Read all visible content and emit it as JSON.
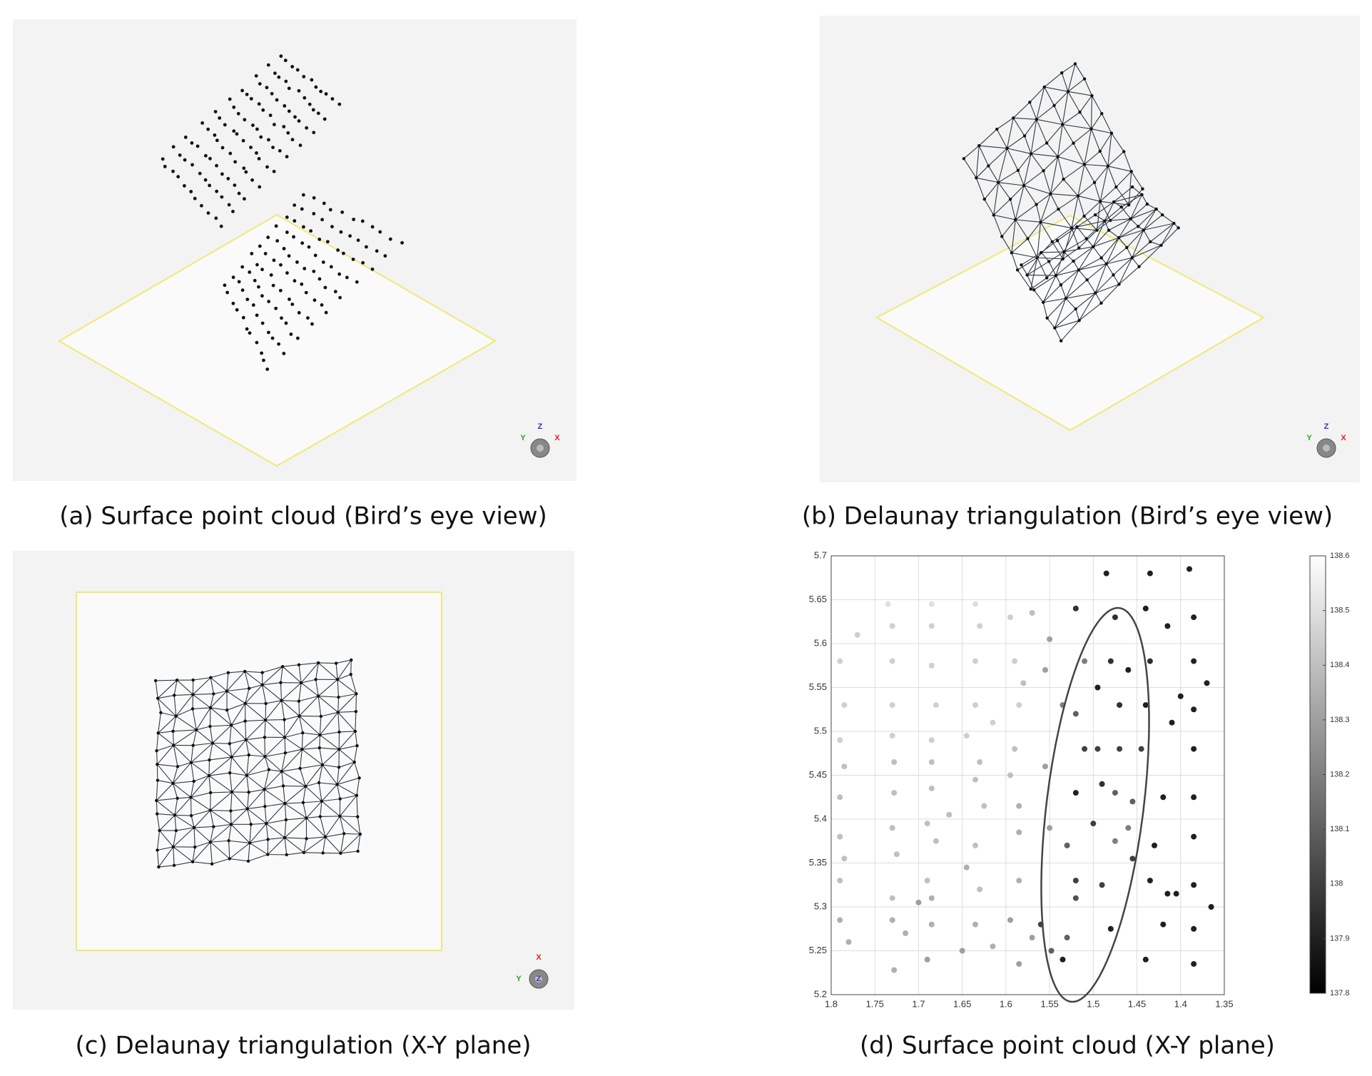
{
  "captions": [
    "(a) Surface point cloud (Bird’s eye view)",
    "(b) Delaunay triangulation (Bird’s eye view)",
    "(c) Delaunay triangulation (X-Y plane)",
    "(d) Surface point cloud (X-Y plane)"
  ],
  "gizmos": [
    [
      "Z",
      "Y",
      "X"
    ],
    [
      "Z",
      "Y",
      "X"
    ],
    [
      "X",
      "Y",
      "Z"
    ]
  ],
  "chart_data": {
    "type": "scatter",
    "xlim": [
      1.8,
      1.35
    ],
    "ylim": [
      5.2,
      5.7
    ],
    "xticks": [
      1.8,
      1.75,
      1.7,
      1.65,
      1.6,
      1.55,
      1.5,
      1.45,
      1.4,
      1.35
    ],
    "yticks": [
      5.2,
      5.25,
      5.3,
      5.35,
      5.4,
      5.45,
      5.5,
      5.55,
      5.6,
      5.65,
      5.7
    ],
    "grid": true,
    "colorbar": {
      "lim": [
        137.8,
        138.6
      ],
      "ticks": [
        137.8,
        137.9,
        138,
        138.1,
        138.2,
        138.3,
        138.4,
        138.5,
        138.6
      ],
      "colormap": "gray"
    },
    "x": [
      1.79,
      1.785,
      1.79,
      1.785,
      1.79,
      1.79,
      1.785,
      1.79,
      1.79,
      1.78,
      1.77,
      1.735,
      1.73,
      1.73,
      1.73,
      1.73,
      1.728,
      1.728,
      1.73,
      1.725,
      1.73,
      1.73,
      1.715,
      1.728,
      1.685,
      1.685,
      1.685,
      1.68,
      1.685,
      1.685,
      1.685,
      1.69,
      1.68,
      1.69,
      1.685,
      1.7,
      1.685,
      1.69,
      1.665,
      1.635,
      1.63,
      1.635,
      1.635,
      1.645,
      1.63,
      1.635,
      1.625,
      1.635,
      1.645,
      1.63,
      1.635,
      1.65,
      1.615,
      1.615,
      1.595,
      1.59,
      1.585,
      1.59,
      1.595,
      1.585,
      1.585,
      1.585,
      1.595,
      1.585,
      1.57,
      1.58,
      1.57,
      1.55,
      1.555,
      1.555,
      1.55,
      1.56,
      1.548,
      1.535,
      1.52,
      1.535,
      1.52,
      1.51,
      1.52,
      1.53,
      1.52,
      1.52,
      1.53,
      1.51,
      1.495,
      1.49,
      1.495,
      1.5,
      1.49,
      1.475,
      1.48,
      1.47,
      1.47,
      1.475,
      1.475,
      1.48,
      1.485,
      1.46,
      1.455,
      1.455,
      1.46,
      1.445,
      1.44,
      1.435,
      1.44,
      1.44,
      1.435,
      1.435,
      1.415,
      1.42,
      1.415,
      1.42,
      1.43,
      1.405,
      1.41,
      1.4,
      1.39,
      1.385,
      1.385,
      1.385,
      1.385,
      1.385,
      1.385,
      1.385,
      1.385,
      1.385,
      1.37,
      1.365
    ],
    "y": [
      5.58,
      5.53,
      5.49,
      5.46,
      5.425,
      5.38,
      5.355,
      5.33,
      5.285,
      5.26,
      5.61,
      5.645,
      5.62,
      5.58,
      5.53,
      5.495,
      5.465,
      5.43,
      5.39,
      5.36,
      5.31,
      5.285,
      5.27,
      5.228,
      5.645,
      5.62,
      5.575,
      5.53,
      5.49,
      5.465,
      5.435,
      5.395,
      5.375,
      5.33,
      5.31,
      5.305,
      5.28,
      5.24,
      5.405,
      5.645,
      5.62,
      5.58,
      5.53,
      5.495,
      5.465,
      5.445,
      5.415,
      5.37,
      5.345,
      5.32,
      5.28,
      5.25,
      5.51,
      5.255,
      5.63,
      5.58,
      5.53,
      5.48,
      5.45,
      5.415,
      5.385,
      5.33,
      5.285,
      5.235,
      5.635,
      5.555,
      5.265,
      5.605,
      5.57,
      5.46,
      5.39,
      5.28,
      5.25,
      5.24,
      5.64,
      5.53,
      5.52,
      5.48,
      5.43,
      5.37,
      5.33,
      5.31,
      5.265,
      5.58,
      5.55,
      5.44,
      5.48,
      5.395,
      5.325,
      5.63,
      5.58,
      5.53,
      5.48,
      5.43,
      5.375,
      5.275,
      5.68,
      5.57,
      5.42,
      5.355,
      5.39,
      5.48,
      5.24,
      5.68,
      5.64,
      5.53,
      5.33,
      5.58,
      5.62,
      5.425,
      5.315,
      5.28,
      5.37,
      5.315,
      5.51,
      5.54,
      5.685,
      5.63,
      5.58,
      5.525,
      5.48,
      5.425,
      5.38,
      5.325,
      5.275,
      5.235,
      5.555,
      5.3
    ],
    "color_values": [
      138.45,
      138.45,
      138.45,
      138.4,
      138.4,
      138.4,
      138.4,
      138.4,
      138.35,
      138.35,
      138.45,
      138.5,
      138.45,
      138.45,
      138.45,
      138.45,
      138.4,
      138.4,
      138.4,
      138.4,
      138.4,
      138.35,
      138.35,
      138.35,
      138.5,
      138.45,
      138.45,
      138.45,
      138.45,
      138.4,
      138.4,
      138.4,
      138.4,
      138.4,
      138.35,
      138.3,
      138.35,
      138.3,
      138.4,
      138.5,
      138.45,
      138.45,
      138.45,
      138.45,
      138.4,
      138.4,
      138.4,
      138.4,
      138.35,
      138.4,
      138.35,
      138.3,
      138.45,
      138.35,
      138.45,
      138.45,
      138.45,
      138.4,
      138.4,
      138.35,
      138.35,
      138.35,
      138.3,
      138.3,
      138.4,
      138.4,
      138.3,
      138.3,
      138.3,
      138.3,
      138.3,
      138.0,
      138.1,
      137.9,
      137.95,
      138.2,
      138.1,
      138.0,
      137.9,
      138.1,
      138.0,
      138.05,
      138.1,
      138.2,
      137.9,
      137.95,
      138.0,
      138.0,
      138.0,
      137.95,
      137.95,
      137.95,
      138.0,
      138.1,
      138.2,
      137.9,
      137.9,
      137.9,
      138.1,
      138.0,
      138.2,
      138.0,
      137.9,
      137.9,
      137.9,
      137.9,
      137.9,
      137.95,
      137.9,
      137.9,
      137.9,
      137.9,
      137.9,
      137.9,
      137.9,
      137.9,
      137.9,
      137.9,
      137.9,
      137.9,
      137.9,
      137.9,
      137.9,
      137.9,
      137.9,
      137.9,
      137.9,
      137.9
    ]
  }
}
